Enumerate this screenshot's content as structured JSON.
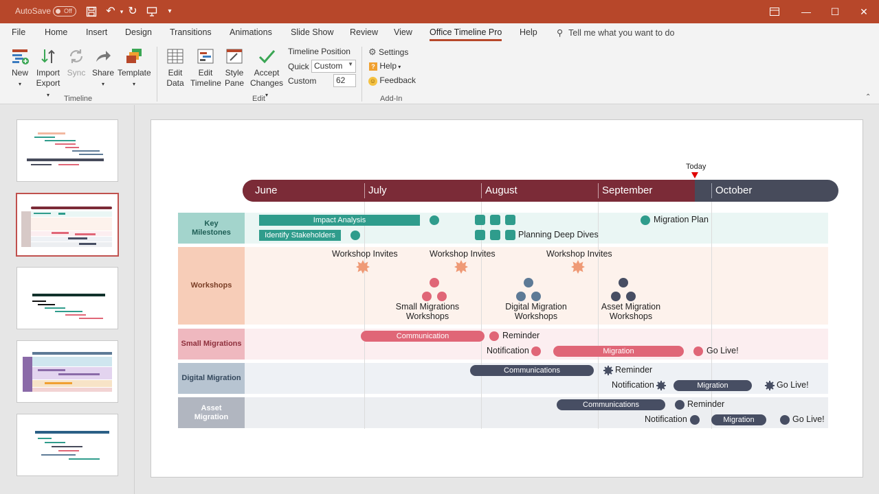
{
  "titlebar": {
    "autosave_label": "AutoSave",
    "autosave_state": "Off"
  },
  "tabs": [
    "File",
    "Home",
    "Insert",
    "Design",
    "Transitions",
    "Animations",
    "Slide Show",
    "Review",
    "View",
    "Office Timeline Pro",
    "Help"
  ],
  "active_tab": "Office Timeline Pro",
  "tell_me": "Tell me what you want to do",
  "ribbon": {
    "timeline_group": {
      "label": "Timeline",
      "new": "New",
      "import": "Import",
      "export": "Export",
      "sync": "Sync",
      "share": "Share",
      "template": "Template"
    },
    "edit_group": {
      "label": "Edit",
      "edit_data_1": "Edit",
      "edit_data_2": "Data",
      "edit_timeline_1": "Edit",
      "edit_timeline_2": "Timeline",
      "style_pane_1": "Style",
      "style_pane_2": "Pane",
      "accept_changes_1": "Accept",
      "accept_changes_2": "Changes",
      "timeline_position": "Timeline Position",
      "quick_label": "Quick",
      "quick_value": "Custom",
      "custom_label": "Custom",
      "custom_value": "62"
    },
    "addin_group": {
      "label": "Add-In",
      "settings": "Settings",
      "help": "Help",
      "feedback": "Feedback"
    }
  },
  "slide": {
    "today_label": "Today",
    "months": [
      "June",
      "July",
      "August",
      "September",
      "October"
    ],
    "rows": [
      {
        "name": "Key Milestones",
        "line1": "Key",
        "line2": "Milestones",
        "color": "#a3d4cc",
        "bg": "#eaf6f4"
      },
      {
        "name": "Workshops",
        "line1": "Workshops",
        "line2": "",
        "color": "#f7cdb8",
        "bg": "#fdf2ec"
      },
      {
        "name": "Small Migrations",
        "line1": "Small Migrations",
        "line2": "",
        "color": "#efb8bf",
        "bg": "#fceef0"
      },
      {
        "name": "Digital Migration",
        "line1": "Digital Migration",
        "line2": "",
        "color": "#b7c4d1",
        "bg": "#eef1f5"
      },
      {
        "name": "Asset Migration",
        "line1": "Asset",
        "line2": "Migration",
        "color": "#b1b6c0",
        "bg": "#eceef1"
      }
    ],
    "key_milestones": {
      "impact_analysis": "Impact Analysis",
      "identify_stakeholders": "Identify Stakeholders",
      "planning_deep_dives": "Planning Deep Dives",
      "migration_plan": "Migration Plan"
    },
    "workshops": {
      "invite_1": "Workshop Invites",
      "invite_2": "Workshop Invites",
      "invite_3": "Workshop Invites",
      "small_1": "Small Migrations",
      "small_2": "Workshops",
      "digital_1": "Digital Migration",
      "digital_2": "Workshops",
      "asset_1": "Asset Migration",
      "asset_2": "Workshops"
    },
    "small_migrations": {
      "communication": "Communication",
      "reminder": "Reminder",
      "notification": "Notification",
      "migration": "Migration",
      "go_live": "Go Live!"
    },
    "digital_migration": {
      "communications": "Communications",
      "reminder": "Reminder",
      "notification": "Notification",
      "migration": "Migration",
      "go_live": "Go Live!"
    },
    "asset_migration": {
      "communications": "Communications",
      "reminder": "Reminder",
      "notification": "Notification",
      "migration": "Migration",
      "go_live": "Go Live!"
    }
  },
  "colors": {
    "accent": "#b7472a",
    "timeline_past": "#7b2b37",
    "timeline_future": "#474b5b",
    "teal": "#2f9c8c",
    "peach": "#ef9a76",
    "pink": "#e06677",
    "slate_blue": "#5d7a96",
    "dark_slate": "#474e63"
  }
}
